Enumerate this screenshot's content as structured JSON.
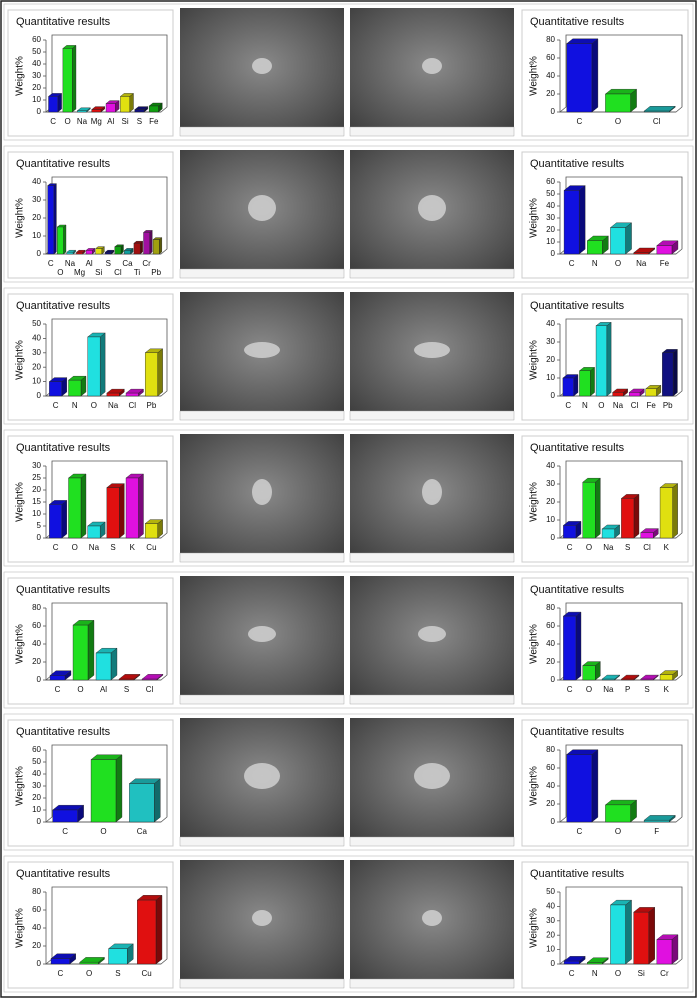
{
  "chart_data": [
    {
      "type": "bar",
      "title": "Quantitative results",
      "y_label": "Weight%",
      "categories": [
        "C",
        "O",
        "Na",
        "Mg",
        "Al",
        "Si",
        "S",
        "Fe"
      ],
      "values": [
        13,
        53,
        1,
        2,
        7,
        13,
        2,
        5
      ],
      "colors": [
        "#1010e0",
        "#20e020",
        "#20e0e0",
        "#e01010",
        "#e010e0",
        "#e0e010",
        "#101080",
        "#10a010"
      ],
      "ylim": [
        0,
        60
      ],
      "yticks": [
        0,
        10,
        20,
        30,
        40,
        50,
        60
      ]
    },
    {
      "type": "bar",
      "title": "Quantitative results",
      "y_label": "Weight%",
      "categories": [
        "C",
        "O",
        "Cl"
      ],
      "values": [
        76,
        20,
        1
      ],
      "colors": [
        "#1010e0",
        "#20e020",
        "#20c0c0"
      ],
      "ylim": [
        0,
        80
      ],
      "yticks": [
        0,
        20,
        40,
        60,
        80
      ]
    },
    {
      "type": "bar",
      "title": "Quantitative results",
      "y_label": "Weight%",
      "categories": [
        "C",
        "O",
        "Na",
        "Mg",
        "Al",
        "Si",
        "S",
        "Cl",
        "Ca",
        "Ti",
        "Cr",
        "Pb"
      ],
      "values": [
        38,
        15,
        1,
        1,
        2,
        3,
        1,
        4,
        2,
        6,
        12,
        8
      ],
      "colors": [
        "#1010e0",
        "#20e020",
        "#20e0e0",
        "#e01010",
        "#e010e0",
        "#e0e010",
        "#101080",
        "#10a010",
        "#10a0a0",
        "#a01010",
        "#a010a0",
        "#a0a010"
      ],
      "ylim": [
        0,
        40
      ],
      "yticks": [
        0,
        10,
        20,
        30,
        40
      ]
    },
    {
      "type": "bar",
      "title": "Quantitative results",
      "y_label": "Weight%",
      "categories": [
        "C",
        "N",
        "O",
        "Na",
        "Fe"
      ],
      "values": [
        53,
        11,
        22,
        1,
        7
      ],
      "colors": [
        "#1010e0",
        "#20e020",
        "#20e0e0",
        "#e01010",
        "#e010e0"
      ],
      "ylim": [
        0,
        60
      ],
      "yticks": [
        0,
        10,
        20,
        30,
        40,
        50,
        60
      ]
    },
    {
      "type": "bar",
      "title": "Quantitative results",
      "y_label": "Weight%",
      "categories": [
        "C",
        "N",
        "O",
        "Na",
        "Cl",
        "Pb"
      ],
      "values": [
        10,
        11,
        41,
        2,
        2,
        30
      ],
      "colors": [
        "#1010e0",
        "#20e020",
        "#20e0e0",
        "#e01010",
        "#e010e0",
        "#e0e010"
      ],
      "ylim": [
        0,
        50
      ],
      "yticks": [
        0,
        10,
        20,
        30,
        40,
        50
      ]
    },
    {
      "type": "bar",
      "title": "Quantitative results",
      "y_label": "Weight%",
      "categories": [
        "C",
        "N",
        "O",
        "Na",
        "Cl",
        "Fe",
        "Pb"
      ],
      "values": [
        10,
        14,
        39,
        2,
        2,
        4,
        24
      ],
      "colors": [
        "#1010e0",
        "#20e020",
        "#20e0e0",
        "#e01010",
        "#e010e0",
        "#e0e010",
        "#101080"
      ],
      "ylim": [
        0,
        40
      ],
      "yticks": [
        0,
        10,
        20,
        30,
        40
      ]
    },
    {
      "type": "bar",
      "title": "Quantitative results",
      "y_label": "Weight%",
      "categories": [
        "C",
        "O",
        "Na",
        "S",
        "K",
        "Cu"
      ],
      "values": [
        14,
        25,
        5,
        21,
        25,
        6
      ],
      "colors": [
        "#1010e0",
        "#20e020",
        "#20e0e0",
        "#e01010",
        "#e010e0",
        "#e0e010"
      ],
      "ylim": [
        0,
        30
      ],
      "yticks": [
        0,
        5,
        10,
        15,
        20,
        25,
        30
      ]
    },
    {
      "type": "bar",
      "title": "Quantitative results",
      "y_label": "Weight%",
      "categories": [
        "C",
        "O",
        "Na",
        "S",
        "Cl",
        "K"
      ],
      "values": [
        7,
        31,
        5,
        22,
        3,
        28
      ],
      "colors": [
        "#1010e0",
        "#20e020",
        "#20e0e0",
        "#e01010",
        "#e010e0",
        "#e0e010"
      ],
      "ylim": [
        0,
        40
      ],
      "yticks": [
        0,
        10,
        20,
        30,
        40
      ]
    },
    {
      "type": "bar",
      "title": "Quantitative results",
      "y_label": "Weight%",
      "categories": [
        "C",
        "O",
        "Al",
        "S",
        "Cl"
      ],
      "values": [
        5,
        61,
        30,
        1,
        1
      ],
      "colors": [
        "#1010e0",
        "#20e020",
        "#20e0e0",
        "#e01010",
        "#e010e0"
      ],
      "ylim": [
        0,
        80
      ],
      "yticks": [
        0,
        20,
        40,
        60,
        80
      ]
    },
    {
      "type": "bar",
      "title": "Quantitative results",
      "y_label": "Weight%",
      "categories": [
        "C",
        "O",
        "Na",
        "P",
        "S",
        "K"
      ],
      "values": [
        71,
        16,
        1,
        1,
        1,
        6
      ],
      "colors": [
        "#1010e0",
        "#20e020",
        "#20e0e0",
        "#e01010",
        "#e010e0",
        "#e0e010"
      ],
      "ylim": [
        0,
        80
      ],
      "yticks": [
        0,
        20,
        40,
        60,
        80
      ]
    },
    {
      "type": "bar",
      "title": "Quantitative results",
      "y_label": "Weight%",
      "categories": [
        "C",
        "O",
        "Ca"
      ],
      "values": [
        10,
        52,
        32
      ],
      "colors": [
        "#1010e0",
        "#20e020",
        "#20c0c0"
      ],
      "ylim": [
        0,
        60
      ],
      "yticks": [
        0,
        10,
        20,
        30,
        40,
        50,
        60
      ]
    },
    {
      "type": "bar",
      "title": "Quantitative results",
      "y_label": "Weight%",
      "categories": [
        "C",
        "O",
        "F"
      ],
      "values": [
        75,
        19,
        2
      ],
      "colors": [
        "#1010e0",
        "#20e020",
        "#20c0c0"
      ],
      "ylim": [
        0,
        80
      ],
      "yticks": [
        0,
        20,
        40,
        60,
        80
      ]
    },
    {
      "type": "bar",
      "title": "Quantitative results",
      "y_label": "Weight%",
      "categories": [
        "C",
        "O",
        "S",
        "Cu"
      ],
      "values": [
        6,
        2,
        17,
        71
      ],
      "colors": [
        "#1010e0",
        "#20e020",
        "#20e0e0",
        "#e01010"
      ],
      "ylim": [
        0,
        80
      ],
      "yticks": [
        0,
        20,
        40,
        60,
        80
      ]
    },
    {
      "type": "bar",
      "title": "Quantitative results",
      "y_label": "Weight%",
      "categories": [
        "C",
        "N",
        "O",
        "Si",
        "Cr"
      ],
      "values": [
        2,
        1,
        41,
        36,
        17
      ],
      "colors": [
        "#1010e0",
        "#20e020",
        "#20e0e0",
        "#e01010",
        "#e010e0"
      ],
      "ylim": [
        0,
        50
      ],
      "yticks": [
        0,
        10,
        20,
        30,
        40,
        50
      ]
    }
  ]
}
